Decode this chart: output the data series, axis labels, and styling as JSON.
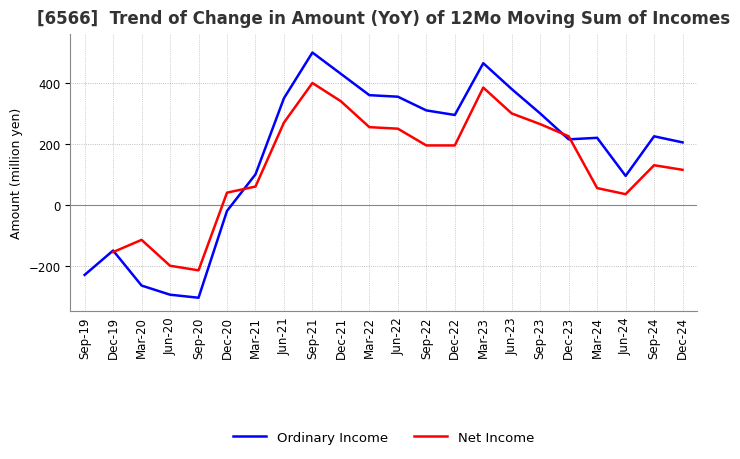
{
  "title": "[6566]  Trend of Change in Amount (YoY) of 12Mo Moving Sum of Incomes",
  "ylabel": "Amount (million yen)",
  "x_labels": [
    "Sep-19",
    "Dec-19",
    "Mar-20",
    "Jun-20",
    "Sep-20",
    "Dec-20",
    "Mar-21",
    "Jun-21",
    "Sep-21",
    "Dec-21",
    "Mar-22",
    "Jun-22",
    "Sep-22",
    "Dec-22",
    "Mar-23",
    "Jun-23",
    "Sep-23",
    "Dec-23",
    "Mar-24",
    "Jun-24",
    "Sep-24",
    "Dec-24"
  ],
  "ordinary_income": [
    -230,
    -150,
    -265,
    -295,
    -305,
    -20,
    100,
    350,
    500,
    430,
    360,
    355,
    310,
    295,
    465,
    380,
    300,
    215,
    220,
    95,
    225,
    205
  ],
  "net_income": [
    null,
    -155,
    -115,
    -200,
    -215,
    40,
    60,
    270,
    400,
    340,
    255,
    250,
    195,
    195,
    385,
    300,
    265,
    225,
    55,
    35,
    130,
    115
  ],
  "ordinary_income_color": "#0000ff",
  "net_income_color": "#ff0000",
  "ylim": [
    -350,
    560
  ],
  "yticks": [
    -200,
    0,
    200,
    400
  ],
  "background_color": "#ffffff",
  "grid_color": "#aaaaaa",
  "title_fontsize": 12,
  "label_fontsize": 9,
  "tick_fontsize": 8.5
}
